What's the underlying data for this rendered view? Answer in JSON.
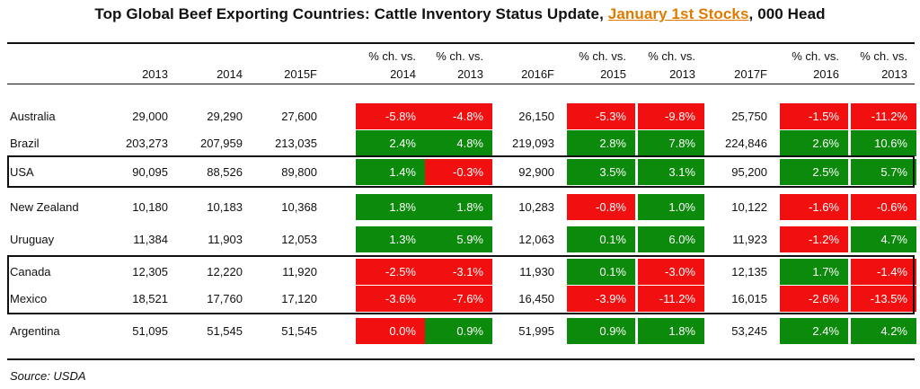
{
  "title": {
    "prefix": "Top Global Beef Exporting Countries: Cattle Inventory Status Update, ",
    "highlight": "January 1st Stocks",
    "suffix": ", 000 Head"
  },
  "source": "Source:  USDA",
  "colors": {
    "positive": "#0b8a0b",
    "negative": "#f20f0f",
    "highlight": "#e07b00"
  },
  "chart_data": {
    "type": "table",
    "columns": [
      {
        "line1": "",
        "line2": "2013"
      },
      {
        "line1": "",
        "line2": "2014"
      },
      {
        "line1": "",
        "line2": "2015F"
      },
      {
        "line1": "% ch. vs.",
        "line2": "2014"
      },
      {
        "line1": "% ch. vs.",
        "line2": "2013"
      },
      {
        "line1": "",
        "line2": "2016F"
      },
      {
        "line1": "% ch. vs.",
        "line2": "2015"
      },
      {
        "line1": "% ch. vs.",
        "line2": "2013"
      },
      {
        "line1": "",
        "line2": "2017F"
      },
      {
        "line1": "% ch. vs.",
        "line2": "2016"
      },
      {
        "line1": "% ch. vs.",
        "line2": "2013"
      }
    ],
    "rows": [
      {
        "country": "Australia",
        "values": [
          "29,000",
          "29,290",
          "27,600",
          "-5.8%",
          "-4.8%",
          "26,150",
          "-5.3%",
          "-9.8%",
          "25,750",
          "-1.5%",
          "-11.2%"
        ]
      },
      {
        "country": "Brazil",
        "values": [
          "203,273",
          "207,959",
          "213,035",
          "2.4%",
          "4.8%",
          "219,093",
          "2.8%",
          "7.8%",
          "224,846",
          "2.6%",
          "10.6%"
        ]
      },
      {
        "country": "USA",
        "values": [
          "90,095",
          "88,526",
          "89,800",
          "1.4%",
          "-0.3%",
          "92,900",
          "3.5%",
          "3.1%",
          "95,200",
          "2.5%",
          "5.7%"
        ]
      },
      {
        "country": "New Zealand",
        "values": [
          "10,180",
          "10,183",
          "10,368",
          "1.8%",
          "1.8%",
          "10,283",
          "-0.8%",
          "1.0%",
          "10,122",
          "-1.6%",
          "-0.6%"
        ]
      },
      {
        "country": "Uruguay",
        "values": [
          "11,384",
          "11,903",
          "12,053",
          "1.3%",
          "5.9%",
          "12,063",
          "0.1%",
          "6.0%",
          "11,923",
          "-1.2%",
          "4.7%"
        ]
      },
      {
        "country": "Canada",
        "values": [
          "12,305",
          "12,220",
          "11,920",
          "-2.5%",
          "-3.1%",
          "11,930",
          "0.1%",
          "-3.0%",
          "12,135",
          "1.7%",
          "-1.4%"
        ]
      },
      {
        "country": "Mexico",
        "values": [
          "18,521",
          "17,760",
          "17,120",
          "-3.6%",
          "-7.6%",
          "16,450",
          "-3.9%",
          "-11.2%",
          "16,015",
          "-2.6%",
          "-13.5%"
        ]
      },
      {
        "country": "Argentina",
        "values": [
          "51,095",
          "51,545",
          "51,545",
          "0.0%",
          "0.9%",
          "51,995",
          "0.9%",
          "1.8%",
          "53,245",
          "2.4%",
          "4.2%"
        ]
      }
    ],
    "pct_columns": [
      3,
      4,
      6,
      7,
      9,
      10
    ],
    "negative_cells": [
      [
        0,
        3
      ],
      [
        0,
        4
      ],
      [
        0,
        6
      ],
      [
        0,
        7
      ],
      [
        0,
        9
      ],
      [
        0,
        10
      ],
      [
        2,
        4
      ],
      [
        3,
        6
      ],
      [
        3,
        9
      ],
      [
        3,
        10
      ],
      [
        4,
        9
      ],
      [
        5,
        3
      ],
      [
        5,
        4
      ],
      [
        5,
        7
      ],
      [
        5,
        10
      ],
      [
        6,
        3
      ],
      [
        6,
        4
      ],
      [
        6,
        6
      ],
      [
        6,
        7
      ],
      [
        6,
        9
      ],
      [
        6,
        10
      ],
      [
        7,
        3
      ]
    ],
    "boxed_groups": [
      [
        "USA"
      ],
      [
        "Canada",
        "Mexico"
      ]
    ]
  }
}
